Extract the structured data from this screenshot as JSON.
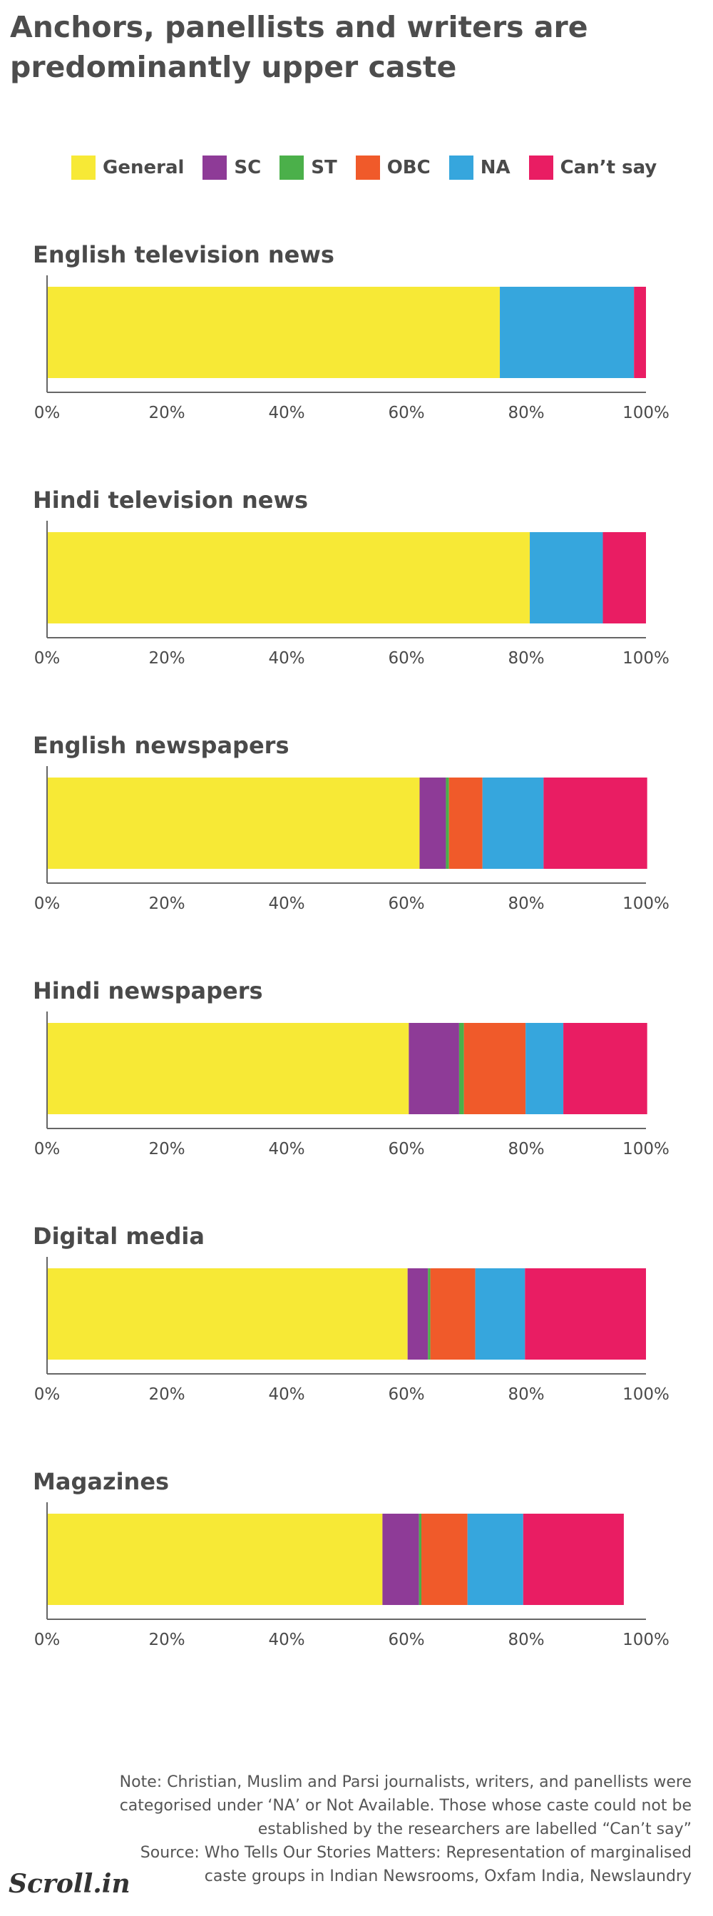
{
  "title": "Anchors, panellists and writers are predominantly upper caste",
  "legend": [
    {
      "label": "General",
      "color": "#f7e936"
    },
    {
      "label": "SC",
      "color": "#8e3b97"
    },
    {
      "label": "ST",
      "color": "#4bb04a"
    },
    {
      "label": "OBC",
      "color": "#f05a2a"
    },
    {
      "label": "NA",
      "color": "#36a6dd"
    },
    {
      "label": "Can’t say",
      "color": "#e91d63"
    }
  ],
  "chart_data": [
    {
      "type": "bar",
      "title": "English television news",
      "categories": [
        "General",
        "SC",
        "ST",
        "OBC",
        "NA",
        "Can’t say"
      ],
      "values": [
        75.6,
        0,
        0,
        0,
        22.4,
        2.0
      ],
      "xlim": [
        0,
        100
      ],
      "xticks": [
        "0%",
        "20%",
        "40%",
        "60%",
        "80%",
        "100%"
      ]
    },
    {
      "type": "bar",
      "title": "Hindi television news",
      "categories": [
        "General",
        "SC",
        "ST",
        "OBC",
        "NA",
        "Can’t say"
      ],
      "values": [
        80.6,
        0,
        0,
        0,
        12.2,
        7.2
      ],
      "xlim": [
        0,
        100
      ],
      "xticks": [
        "0%",
        "20%",
        "40%",
        "60%",
        "80%",
        "100%"
      ]
    },
    {
      "type": "bar",
      "title": "English newspapers",
      "categories": [
        "General",
        "SC",
        "ST",
        "OBC",
        "NA",
        "Can’t say"
      ],
      "values": [
        62.2,
        4.4,
        0.5,
        5.6,
        10.2,
        17.3
      ],
      "xlim": [
        0,
        100
      ],
      "xticks": [
        "0%",
        "20%",
        "40%",
        "60%",
        "80%",
        "100%"
      ]
    },
    {
      "type": "bar",
      "title": "Hindi newspapers",
      "categories": [
        "General",
        "SC",
        "ST",
        "OBC",
        "NA",
        "Can’t say"
      ],
      "values": [
        60.4,
        8.4,
        0.8,
        10.3,
        6.3,
        14.0
      ],
      "xlim": [
        0,
        100
      ],
      "xticks": [
        "0%",
        "20%",
        "40%",
        "60%",
        "80%",
        "100%"
      ]
    },
    {
      "type": "bar",
      "title": "Digital media",
      "categories": [
        "General",
        "SC",
        "ST",
        "OBC",
        "NA",
        "Can’t say"
      ],
      "values": [
        60.2,
        3.4,
        0.4,
        7.5,
        8.3,
        20.2
      ],
      "xlim": [
        0,
        100
      ],
      "xticks": [
        "0%",
        "20%",
        "40%",
        "60%",
        "80%",
        "100%"
      ]
    },
    {
      "type": "bar",
      "title": "Magazines",
      "categories": [
        "General",
        "SC",
        "ST",
        "OBC",
        "NA",
        "Can’t say"
      ],
      "values": [
        56.0,
        6.1,
        0.4,
        7.7,
        9.3,
        16.8
      ],
      "xlim": [
        0,
        100
      ],
      "xticks": [
        "0%",
        "20%",
        "40%",
        "60%",
        "80%",
        "100%"
      ]
    }
  ],
  "note": {
    "line1": "Note: Christian, Muslim and Parsi journalists, writers, and panellists were",
    "line2": "categorised under ‘NA’ or Not Available. Those whose caste could not be",
    "line3": "established by the researchers are labelled “Can’t say”",
    "line4": "Source: Who Tells Our Stories Matters: Representation of marginalised",
    "line5": "caste groups in Indian Newsrooms, Oxfam India, Newslaundry"
  },
  "logo": "Scroll.in"
}
